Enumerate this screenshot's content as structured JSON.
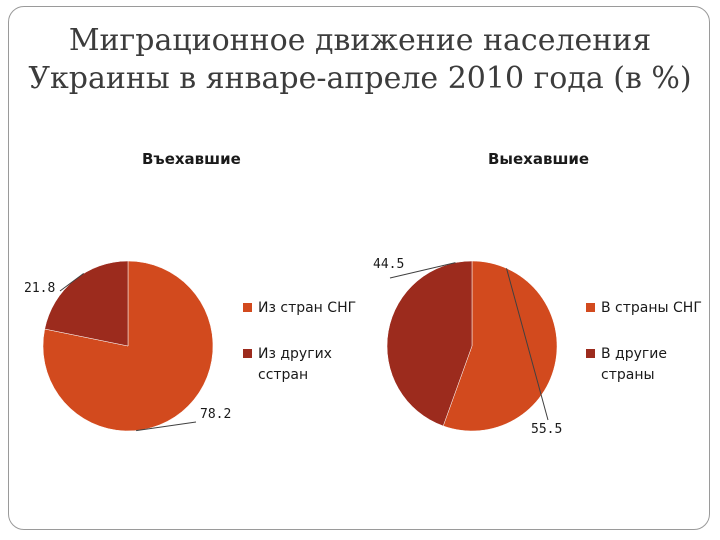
{
  "slide": {
    "title_line1": "Миграционное движение населения",
    "title_line2": "Украины в январе-апреле 2010 года (в %)"
  },
  "chart_data": [
    {
      "type": "pie",
      "title": "Въехавшие",
      "slices": [
        {
          "label": "Из стран СНГ",
          "legend_lines": [
            "Из стран СНГ"
          ],
          "value": 78.2,
          "color": "#d24a1e"
        },
        {
          "label": "Из других сстран",
          "legend_lines": [
            "Из других",
            "сстран"
          ],
          "value": 21.8,
          "color": "#9c2b1d"
        }
      ]
    },
    {
      "type": "pie",
      "title": "Выехавшие",
      "slices": [
        {
          "label": "В страны СНГ",
          "legend_lines": [
            "В страны СНГ"
          ],
          "value": 55.5,
          "color": "#d24a1e"
        },
        {
          "label": "В другие страны",
          "legend_lines": [
            "В другие",
            "страны"
          ],
          "value": 44.5,
          "color": "#9c2b1d"
        }
      ]
    }
  ]
}
